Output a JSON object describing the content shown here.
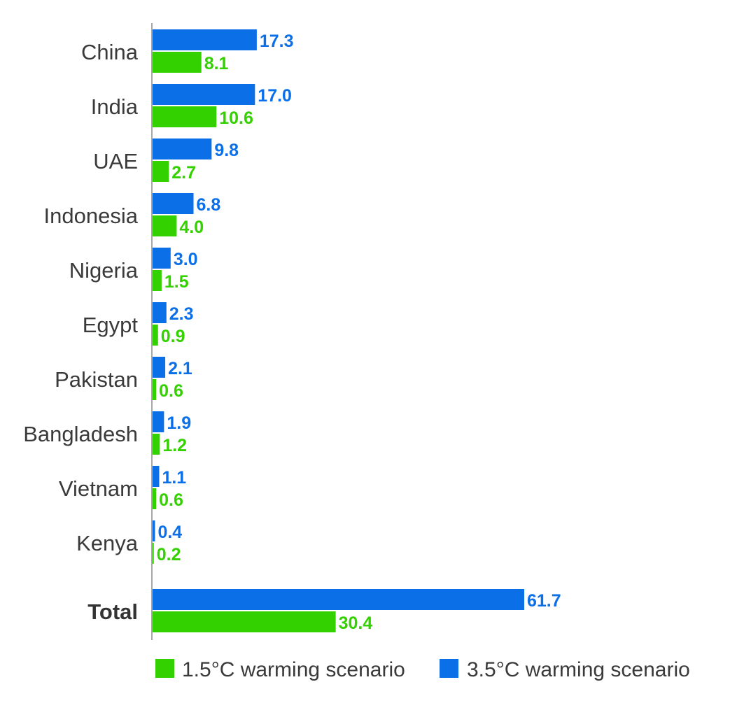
{
  "chart_data": {
    "type": "bar",
    "orientation": "horizontal",
    "title": "",
    "xlabel": "",
    "ylabel": "",
    "categories": [
      "China",
      "India",
      "UAE",
      "Indonesia",
      "Nigeria",
      "Egypt",
      "Pakistan",
      "Bangladesh",
      "Vietnam",
      "Kenya",
      "Total"
    ],
    "series": [
      {
        "name": "3.5°C warming scenario",
        "color": "#0b6fe8",
        "values": [
          17.3,
          17.0,
          9.8,
          6.8,
          3.0,
          2.3,
          2.1,
          1.9,
          1.1,
          0.4,
          61.7
        ],
        "labels": [
          "17.3",
          "17.0",
          "9.8",
          "6.8",
          "3.0",
          "2.3",
          "2.1",
          "1.9",
          "1.1",
          "0.4",
          "61.7"
        ]
      },
      {
        "name": "1.5°C warming scenario",
        "color": "#33d100",
        "values": [
          8.1,
          10.6,
          2.7,
          4.0,
          1.5,
          0.9,
          0.6,
          1.2,
          0.6,
          0.2,
          30.4
        ],
        "labels": [
          "8.1",
          "10.6",
          "2.7",
          "4.0",
          "1.5",
          "0.9",
          "0.6",
          "1.2",
          "0.6",
          "0.2",
          "30.4"
        ]
      }
    ],
    "xlim": [
      0,
      61.7
    ],
    "grid": false,
    "emphasized_category": "Total",
    "legend": {
      "position": "bottom",
      "items": [
        {
          "label": "1.5°C warming scenario",
          "color": "#33d100"
        },
        {
          "label": "3.5°C warming scenario",
          "color": "#0b6fe8"
        }
      ]
    }
  }
}
